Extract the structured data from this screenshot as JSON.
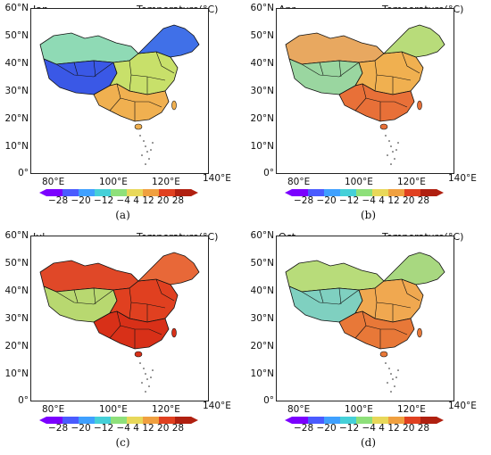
{
  "colorbar": {
    "title": "Temperature(°C)",
    "ticks_text": "−28 −20 −12  −4   4   12  20  28",
    "colors": [
      "#7b00ff",
      "#4a5bff",
      "#3fa0ff",
      "#45d0d8",
      "#8ee07a",
      "#e8d85a",
      "#f0a040",
      "#e04020",
      "#b02010"
    ]
  },
  "axes": {
    "lat_ticks": [
      "60°N",
      "50°N",
      "40°N",
      "30°N",
      "20°N",
      "10°N",
      "0°"
    ],
    "lon_ticks": [
      "80°E",
      "100°E",
      "120°E",
      "140°E"
    ]
  },
  "panels": [
    {
      "month": "Jan",
      "caption": "(a)",
      "fills": {
        "nw": "#8fdab5",
        "tibet": "#3a58e6",
        "east": "#c8e06a",
        "south": "#f0b050",
        "ne": "#4070e8"
      }
    },
    {
      "month": "Apr",
      "caption": "(b)",
      "fills": {
        "nw": "#e8a860",
        "tibet": "#9ad6a0",
        "east": "#f0b050",
        "south": "#e87038",
        "ne": "#b8dc7a"
      }
    },
    {
      "month": "Jul",
      "caption": "(c)",
      "fills": {
        "nw": "#e04828",
        "tibet": "#b8d870",
        "east": "#e04020",
        "south": "#d83018",
        "ne": "#e86838"
      }
    },
    {
      "month": "Oct",
      "caption": "(d)",
      "fills": {
        "nw": "#b8dc7a",
        "tibet": "#7fd0c0",
        "east": "#f0a850",
        "south": "#e87838",
        "ne": "#a8d880"
      }
    }
  ]
}
